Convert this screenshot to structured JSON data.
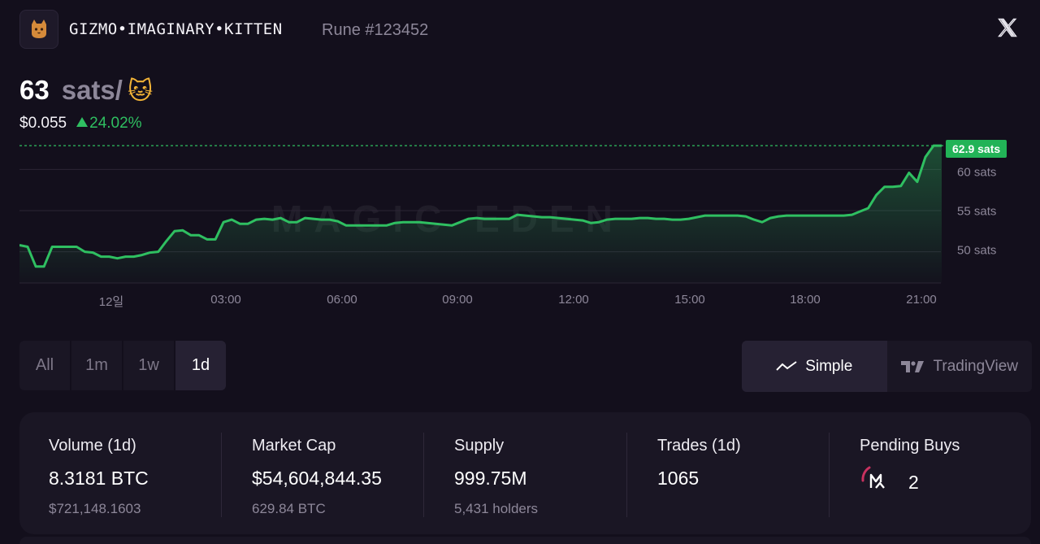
{
  "header": {
    "rune_name": "GIZMO•IMAGINARY•KITTEN",
    "rune_id": "Rune #123452",
    "avatar_icon": "kitten-avatar-icon",
    "close_icon": "x-logo-icon"
  },
  "price": {
    "value": "63",
    "unit": "sats/",
    "emoji": "🐱",
    "usd": "$0.055",
    "change": "24.02%",
    "change_direction": "up"
  },
  "chart": {
    "last_label": "62.9 sats",
    "watermark": "MAGIC EDEN",
    "y_ticks": [
      "60 sats",
      "55 sats",
      "50 sats"
    ],
    "x_ticks": [
      "12일",
      "03:00",
      "06:00",
      "09:00",
      "12:00",
      "15:00",
      "18:00",
      "21:00"
    ],
    "colors": {
      "line": "#2fbf61",
      "last_label_bg": "#22b357",
      "grid": "#2b2535"
    }
  },
  "chart_data": {
    "type": "area",
    "ylim": [
      46.2,
      63.8
    ],
    "y_ticks": [
      50,
      55,
      60
    ],
    "x_ticks": [
      "12일",
      "03:00",
      "06:00",
      "09:00",
      "12:00",
      "15:00",
      "18:00",
      "21:00"
    ],
    "last_value": 62.9,
    "series": [
      {
        "x": [
          0,
          0.2,
          0.4,
          0.6,
          0.8,
          1.0,
          1.2,
          1.4,
          1.6,
          1.8,
          2.0,
          2.2,
          2.4,
          2.6,
          2.8,
          3.0,
          3.2,
          3.4,
          3.6,
          3.8,
          4.0,
          4.2,
          4.4,
          4.6,
          4.8,
          5.0,
          5.2,
          5.4,
          5.6,
          5.8,
          6.0,
          6.2,
          6.4,
          6.6,
          6.8,
          7.0,
          7.2,
          7.4,
          7.6,
          7.8,
          8.0,
          8.2,
          8.4,
          8.6,
          8.8,
          9.0,
          9.2,
          9.4,
          9.6,
          9.8,
          10.0,
          10.2,
          10.4,
          10.6,
          10.8,
          11.0,
          11.2,
          11.4,
          11.6,
          11.8,
          12.0,
          12.2,
          12.4,
          12.6,
          12.8,
          13.0,
          13.2,
          13.4,
          13.6,
          13.8,
          14.0,
          14.2,
          14.4,
          14.6,
          14.8,
          15.0,
          15.2,
          15.4,
          15.6,
          15.8,
          16.0,
          16.2,
          16.4,
          16.6,
          16.8,
          17.0,
          17.2,
          17.4,
          17.6,
          17.8,
          18.0,
          18.2,
          18.4,
          18.6,
          18.8,
          19.0,
          19.2,
          19.4,
          19.6,
          19.8,
          20.0,
          20.2,
          20.4,
          20.6,
          20.8,
          21.0,
          21.2,
          21.4,
          21.6,
          21.8,
          22.0,
          22.2,
          22.4,
          22.6
        ],
        "values": [
          50.8,
          50.6,
          48.2,
          48.2,
          50.6,
          50.6,
          50.6,
          50.6,
          50.0,
          49.9,
          49.4,
          49.4,
          49.2,
          49.4,
          49.4,
          49.6,
          49.9,
          50.0,
          51.3,
          52.5,
          52.6,
          52.0,
          52.0,
          51.5,
          51.5,
          53.6,
          53.9,
          53.4,
          53.4,
          53.9,
          54.0,
          53.9,
          54.1,
          53.6,
          53.6,
          54.1,
          54.0,
          53.9,
          53.9,
          53.7,
          53.2,
          53.2,
          53.2,
          53.2,
          53.2,
          53.2,
          53.5,
          53.6,
          53.6,
          53.6,
          53.5,
          53.4,
          53.3,
          53.2,
          53.6,
          54.0,
          54.1,
          54.0,
          54.0,
          54.0,
          54.0,
          54.5,
          54.4,
          54.3,
          54.2,
          54.2,
          54.1,
          54.0,
          53.9,
          53.8,
          53.5,
          53.6,
          53.9,
          54.0,
          54.0,
          54.0,
          54.1,
          54.1,
          54.0,
          54.0,
          53.9,
          53.9,
          54.0,
          54.2,
          54.4,
          54.4,
          54.4,
          54.4,
          54.4,
          54.3,
          53.9,
          53.6,
          54.1,
          54.3,
          54.4,
          54.4,
          54.4,
          54.4,
          54.4,
          54.4,
          54.4,
          54.4,
          54.5,
          54.9,
          55.3,
          56.9,
          57.9,
          57.9,
          58.0,
          59.6,
          58.5,
          61.5,
          62.9,
          62.9
        ]
      }
    ]
  },
  "range_tabs": [
    "All",
    "1m",
    "1w",
    "1d"
  ],
  "range_active": "1d",
  "mode_tabs": {
    "simple": "Simple",
    "tradingview": "TradingView"
  },
  "stats": [
    {
      "label": "Volume (1d)",
      "value": "8.3181 BTC",
      "sub": "$721,148.1603"
    },
    {
      "label": "Market Cap",
      "value": "$54,604,844.35",
      "sub": "629.84 BTC"
    },
    {
      "label": "Supply",
      "value": "999.75M",
      "sub": "5,431 holders"
    },
    {
      "label": "Trades (1d)",
      "value": "1065",
      "sub": ""
    },
    {
      "label": "Pending Buys",
      "value": "2",
      "sub": ""
    }
  ]
}
